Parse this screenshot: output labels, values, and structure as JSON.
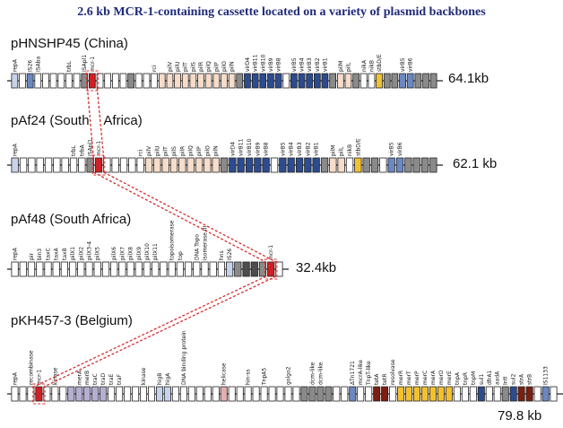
{
  "title": "2.6 kb MCR-1-containing cassette located on a variety of plasmid backbones",
  "colors": {
    "mcr1": "#d11f25",
    "plain": "#ffffff",
    "grey": "#8a8a8a",
    "darkgrey": "#4d4d4d",
    "lightblue": "#c7d3ea",
    "midblue": "#6c88c3",
    "darkblue": "#2d4b8f",
    "lavender": "#b6aed3",
    "peach": "#f6dcc9",
    "pink": "#e7aeb0",
    "yellow": "#f3c130",
    "brown": "#7a1f12",
    "dashed_link": "#d82e2e"
  },
  "plasmids": [
    {
      "name": "pHNSHP45 (China)",
      "size": "64.1kb",
      "genes": [
        {
          "label": "repA",
          "color": "lightblue"
        },
        {
          "label": "",
          "color": "plain"
        },
        {
          "label": "IS26",
          "color": "midblue"
        },
        {
          "label": "ISAba",
          "color": "plain"
        },
        {
          "label": "",
          "color": "plain"
        },
        {
          "label": "",
          "color": "plain"
        },
        {
          "label": "",
          "color": "plain"
        },
        {
          "label": "trbL",
          "color": "plain"
        },
        {
          "label": "",
          "color": "plain"
        },
        {
          "label": "ISApl1",
          "color": "grey"
        },
        {
          "label": "mcr-1",
          "color": "mcr1"
        },
        {
          "label": "",
          "color": "plain"
        },
        {
          "label": "",
          "color": "plain"
        },
        {
          "label": "",
          "color": "plain"
        },
        {
          "label": "",
          "color": "plain"
        },
        {
          "label": "",
          "color": "grey"
        },
        {
          "label": "",
          "color": "plain"
        },
        {
          "label": "",
          "color": "plain"
        },
        {
          "label": "rci",
          "color": "plain"
        },
        {
          "label": "",
          "color": "peach"
        },
        {
          "label": "pilV",
          "color": "peach"
        },
        {
          "label": "pilU",
          "color": "peach"
        },
        {
          "label": "pilT",
          "color": "peach"
        },
        {
          "label": "pilS",
          "color": "peach"
        },
        {
          "label": "pilR",
          "color": "peach"
        },
        {
          "label": "pilQ",
          "color": "peach"
        },
        {
          "label": "pilP",
          "color": "peach"
        },
        {
          "label": "pilO",
          "color": "peach"
        },
        {
          "label": "pilN",
          "color": "peach"
        },
        {
          "label": "",
          "color": "grey"
        },
        {
          "label": "virD4",
          "color": "darkblue"
        },
        {
          "label": "virB11",
          "color": "darkblue"
        },
        {
          "label": "virB10",
          "color": "darkblue"
        },
        {
          "label": "virB9",
          "color": "darkblue"
        },
        {
          "label": "virB8",
          "color": "darkblue"
        },
        {
          "label": "",
          "color": "plain"
        },
        {
          "label": "virB5",
          "color": "darkblue"
        },
        {
          "label": "virB4",
          "color": "darkblue"
        },
        {
          "label": "virB3",
          "color": "darkblue"
        },
        {
          "label": "virB2",
          "color": "darkblue"
        },
        {
          "label": "virB1",
          "color": "darkblue"
        },
        {
          "label": "",
          "color": "grey"
        },
        {
          "label": "pilM",
          "color": "peach"
        },
        {
          "label": "pilL",
          "color": "peach"
        },
        {
          "label": "",
          "color": "grey"
        },
        {
          "label": "nikA",
          "color": "plain"
        },
        {
          "label": "nikB",
          "color": "plain"
        },
        {
          "label": "stbD/E",
          "color": "yellow"
        },
        {
          "label": "",
          "color": "grey"
        },
        {
          "label": "",
          "color": "grey"
        },
        {
          "label": "virB5",
          "color": "midblue"
        },
        {
          "label": "virB6",
          "color": "midblue"
        },
        {
          "label": "",
          "color": "grey"
        },
        {
          "label": "",
          "color": "grey"
        },
        {
          "label": "",
          "color": "grey"
        }
      ]
    },
    {
      "name": "pAf24 (South    Africa)",
      "size": "62.1 kb",
      "genes": [
        {
          "label": "repA",
          "color": "lightblue"
        },
        {
          "label": "",
          "color": "plain"
        },
        {
          "label": "",
          "color": "plain"
        },
        {
          "label": "",
          "color": "plain"
        },
        {
          "label": "",
          "color": "plain"
        },
        {
          "label": "",
          "color": "plain"
        },
        {
          "label": "",
          "color": "plain"
        },
        {
          "label": "trbL",
          "color": "plain"
        },
        {
          "label": "trbA",
          "color": "plain"
        },
        {
          "label": "ISApl1",
          "color": "grey"
        },
        {
          "label": "mcr-1",
          "color": "mcr1"
        },
        {
          "label": "",
          "color": "plain"
        },
        {
          "label": "",
          "color": "plain"
        },
        {
          "label": "",
          "color": "plain"
        },
        {
          "label": "",
          "color": "plain"
        },
        {
          "label": "rci",
          "color": "plain"
        },
        {
          "label": "pilV",
          "color": "peach"
        },
        {
          "label": "pilU",
          "color": "peach"
        },
        {
          "label": "pilT",
          "color": "peach"
        },
        {
          "label": "pilS",
          "color": "peach"
        },
        {
          "label": "pilR",
          "color": "peach"
        },
        {
          "label": "pilQ",
          "color": "peach"
        },
        {
          "label": "pilP",
          "color": "peach"
        },
        {
          "label": "pilO",
          "color": "peach"
        },
        {
          "label": "pilN",
          "color": "peach"
        },
        {
          "label": "",
          "color": "grey"
        },
        {
          "label": "virD4",
          "color": "darkblue"
        },
        {
          "label": "virB11",
          "color": "darkblue"
        },
        {
          "label": "virB10",
          "color": "darkblue"
        },
        {
          "label": "virB9",
          "color": "darkblue"
        },
        {
          "label": "virB8",
          "color": "darkblue"
        },
        {
          "label": "",
          "color": "plain"
        },
        {
          "label": "virB5",
          "color": "darkblue"
        },
        {
          "label": "virB4",
          "color": "darkblue"
        },
        {
          "label": "virB3",
          "color": "darkblue"
        },
        {
          "label": "virB2",
          "color": "darkblue"
        },
        {
          "label": "virB1",
          "color": "darkblue"
        },
        {
          "label": "",
          "color": "grey"
        },
        {
          "label": "pilM",
          "color": "peach"
        },
        {
          "label": "pilL",
          "color": "peach"
        },
        {
          "label": "nikB",
          "color": "plain"
        },
        {
          "label": "stbD/E",
          "color": "yellow"
        },
        {
          "label": "",
          "color": "grey"
        },
        {
          "label": "",
          "color": "grey"
        },
        {
          "label": "",
          "color": "plain"
        },
        {
          "label": "virB5",
          "color": "midblue"
        },
        {
          "label": "virB6",
          "color": "midblue"
        },
        {
          "label": "",
          "color": "grey"
        },
        {
          "label": "",
          "color": "grey"
        },
        {
          "label": "",
          "color": "grey"
        },
        {
          "label": "",
          "color": "grey"
        }
      ]
    },
    {
      "name": "pAf48 (South Africa)",
      "size": "32.4kb",
      "genes": [
        {
          "label": "repA",
          "color": "plain"
        },
        {
          "label": "",
          "color": "plain"
        },
        {
          "label": "pir",
          "color": "plain"
        },
        {
          "label": "bin3",
          "color": "plain"
        },
        {
          "label": "taxC",
          "color": "plain"
        },
        {
          "label": "taxA",
          "color": "plain"
        },
        {
          "label": "taxB",
          "color": "plain"
        },
        {
          "label": "pilX1",
          "color": "plain"
        },
        {
          "label": "pilX2",
          "color": "plain"
        },
        {
          "label": "pilX3-4",
          "color": "plain"
        },
        {
          "label": "pilX5",
          "color": "plain"
        },
        {
          "label": "",
          "color": "plain"
        },
        {
          "label": "pilX6",
          "color": "plain"
        },
        {
          "label": "pilX7",
          "color": "plain"
        },
        {
          "label": "pilX8",
          "color": "plain"
        },
        {
          "label": "pilX9",
          "color": "plain"
        },
        {
          "label": "pilX10",
          "color": "plain"
        },
        {
          "label": "pilX11",
          "color": "plain"
        },
        {
          "label": "",
          "color": "plain"
        },
        {
          "label": "topoisomerase",
          "color": "plain"
        },
        {
          "label": "top",
          "color": "plain"
        },
        {
          "label": "",
          "color": "plain"
        },
        {
          "label": "DNA Topo",
          "color": "plain"
        },
        {
          "label": "isomerase III",
          "color": "plain"
        },
        {
          "label": "",
          "color": "plain"
        },
        {
          "label": "hns",
          "color": "plain"
        },
        {
          "label": "IS26",
          "color": "lightblue"
        },
        {
          "label": "",
          "color": "grey"
        },
        {
          "label": "",
          "color": "darkgrey"
        },
        {
          "label": "",
          "color": "darkgrey"
        },
        {
          "label": "",
          "color": "grey"
        },
        {
          "label": "mcr-1",
          "color": "mcr1"
        },
        {
          "label": "",
          "color": "plain"
        }
      ]
    },
    {
      "name": "pKH457-3 (Belgium)",
      "size": "79.8 kb",
      "genes": [
        {
          "label": "repA",
          "color": "plain"
        },
        {
          "label": "",
          "color": "plain"
        },
        {
          "label": "recombinase",
          "color": "plain"
        },
        {
          "label": "mcr-1",
          "color": "mcr1"
        },
        {
          "label": "",
          "color": "plain"
        },
        {
          "label": "kinase",
          "color": "plain"
        },
        {
          "label": "",
          "color": "plain"
        },
        {
          "label": "",
          "color": "lavender"
        },
        {
          "label": "merA",
          "color": "lavender"
        },
        {
          "label": "merB",
          "color": "lavender"
        },
        {
          "label": "traC",
          "color": "lavender"
        },
        {
          "label": "traD",
          "color": "lavender"
        },
        {
          "label": "traE",
          "color": "plain"
        },
        {
          "label": "traF",
          "color": "plain"
        },
        {
          "label": "",
          "color": "plain"
        },
        {
          "label": "",
          "color": "plain"
        },
        {
          "label": "kinase",
          "color": "plain"
        },
        {
          "label": "",
          "color": "plain"
        },
        {
          "label": "higB",
          "color": "lightblue"
        },
        {
          "label": "higA",
          "color": "lightblue"
        },
        {
          "label": "",
          "color": "plain"
        },
        {
          "label": "DNA binding protein",
          "color": "plain"
        },
        {
          "label": "",
          "color": "plain"
        },
        {
          "label": "",
          "color": "plain"
        },
        {
          "label": "",
          "color": "plain"
        },
        {
          "label": "",
          "color": "plain"
        },
        {
          "label": "helicase",
          "color": "pink"
        },
        {
          "label": "",
          "color": "plain"
        },
        {
          "label": "",
          "color": "plain"
        },
        {
          "label": "hin-ss",
          "color": "plain"
        },
        {
          "label": "",
          "color": "plain"
        },
        {
          "label": "TnpA5",
          "color": "plain"
        },
        {
          "label": "",
          "color": "plain"
        },
        {
          "label": "",
          "color": "plain"
        },
        {
          "label": "golgo2",
          "color": "plain"
        },
        {
          "label": "",
          "color": "plain"
        },
        {
          "label": "",
          "color": "grey"
        },
        {
          "label": "dcm-like",
          "color": "grey"
        },
        {
          "label": "dcm-like",
          "color": "grey"
        },
        {
          "label": "",
          "color": "grey"
        },
        {
          "label": "",
          "color": "plain"
        },
        {
          "label": "",
          "color": "plain"
        },
        {
          "label": "ΔTn1721",
          "color": "midblue"
        },
        {
          "label": "mcrA-like",
          "color": "plain"
        },
        {
          "label": "TnpT-like",
          "color": "plain"
        },
        {
          "label": "tetA",
          "color": "brown"
        },
        {
          "label": "tetR",
          "color": "brown"
        },
        {
          "label": "resolvase",
          "color": "plain"
        },
        {
          "label": "merR",
          "color": "yellow"
        },
        {
          "label": "merT",
          "color": "yellow"
        },
        {
          "label": "merP",
          "color": "yellow"
        },
        {
          "label": "merC",
          "color": "yellow"
        },
        {
          "label": "merA",
          "color": "yellow"
        },
        {
          "label": "merD",
          "color": "yellow"
        },
        {
          "label": "merE",
          "color": "yellow"
        },
        {
          "label": "tnpA",
          "color": "plain"
        },
        {
          "label": "tnpR",
          "color": "plain"
        },
        {
          "label": "tnpM",
          "color": "plain"
        },
        {
          "label": "sul1",
          "color": "darkblue"
        },
        {
          "label": "dfrA1",
          "color": "plain"
        },
        {
          "label": "aadA",
          "color": "plain"
        },
        {
          "label": "IntI",
          "color": "grey"
        },
        {
          "label": "sul2",
          "color": "darkblue"
        },
        {
          "label": "strA",
          "color": "brown"
        },
        {
          "label": "strB",
          "color": "brown"
        },
        {
          "label": "",
          "color": "plain"
        },
        {
          "label": "IS1133",
          "color": "midblue"
        },
        {
          "label": "",
          "color": "plain"
        }
      ]
    }
  ]
}
